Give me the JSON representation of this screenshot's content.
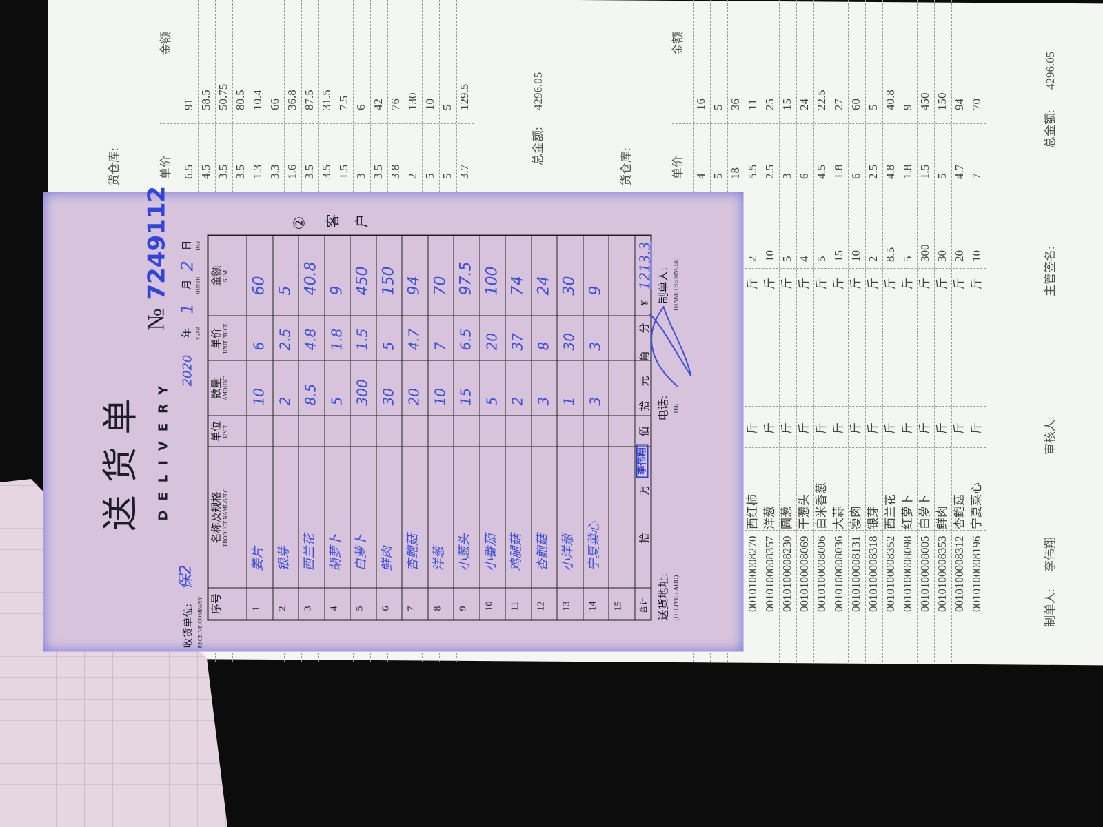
{
  "print_table_1": {
    "header_price": "单价",
    "header_amount": "金额",
    "rows": [
      {
        "price": "6.5",
        "amount": "91"
      },
      {
        "price": "4.5",
        "amount": "58.5"
      },
      {
        "price": "3.5",
        "amount": "50.75"
      },
      {
        "price": "3.5",
        "amount": "80.5"
      },
      {
        "price": "1.3",
        "amount": "10.4"
      },
      {
        "price": "3.3",
        "amount": "66"
      },
      {
        "price": "1.6",
        "amount": "36.8"
      },
      {
        "price": "3.5",
        "amount": "87.5"
      },
      {
        "price": "3.5",
        "amount": "31.5"
      },
      {
        "price": "1.5",
        "amount": "7.5"
      },
      {
        "price": "3",
        "amount": "6"
      },
      {
        "price": "3.5",
        "amount": "42"
      },
      {
        "price": "3.8",
        "amount": "76"
      },
      {
        "price": "2",
        "amount": "130"
      },
      {
        "price": "5",
        "amount": "10"
      },
      {
        "price": "5",
        "amount": "5"
      },
      {
        "price": "3.7",
        "amount": "129.5"
      }
    ],
    "warehouse_label": "货仓库:",
    "total_label": "总金额:",
    "total_value": "4296.05"
  },
  "print_table_2": {
    "header_price": "单价",
    "header_amount": "金额",
    "warehouse_label": "货仓库:",
    "rows": [
      {
        "code": "",
        "name": "",
        "unit": "",
        "unit2": "",
        "qty": "",
        "price": "4",
        "amount": "16"
      },
      {
        "code": "",
        "name": "",
        "unit": "",
        "unit2": "",
        "qty": "",
        "price": "5",
        "amount": "5"
      },
      {
        "code": "",
        "name": "",
        "unit": "",
        "unit2": "",
        "qty": "",
        "price": "18",
        "amount": "36"
      },
      {
        "code": "0010100008270",
        "name": "西红柿",
        "unit": "斤",
        "unit2": "斤",
        "qty": "2",
        "price": "5.5",
        "amount": "11"
      },
      {
        "code": "0010100008357",
        "name": "洋葱",
        "unit": "斤",
        "unit2": "斤",
        "qty": "10",
        "price": "2.5",
        "amount": "25"
      },
      {
        "code": "0010100008230",
        "name": "圆葱",
        "unit": "斤",
        "unit2": "斤",
        "qty": "5",
        "price": "3",
        "amount": "15"
      },
      {
        "code": "0010100008069",
        "name": "干葱头",
        "unit": "斤",
        "unit2": "斤",
        "qty": "4",
        "price": "6",
        "amount": "24"
      },
      {
        "code": "0010100008006",
        "name": "白米香葱",
        "unit": "斤",
        "unit2": "斤",
        "qty": "5",
        "price": "4.5",
        "amount": "22.5"
      },
      {
        "code": "0010100008036",
        "name": "大蒜",
        "unit": "斤",
        "unit2": "斤",
        "qty": "15",
        "price": "1.8",
        "amount": "27"
      },
      {
        "code": "0010100008131",
        "name": "瘦肉",
        "unit": "斤",
        "unit2": "斤",
        "qty": "10",
        "price": "6",
        "amount": "60"
      },
      {
        "code": "0010100008318",
        "name": "银芽",
        "unit": "斤",
        "unit2": "斤",
        "qty": "2",
        "price": "2.5",
        "amount": "5"
      },
      {
        "code": "0010100008352",
        "name": "西兰花",
        "unit": "斤",
        "unit2": "斤",
        "qty": "8.5",
        "price": "4.8",
        "amount": "40.8"
      },
      {
        "code": "0010100008098",
        "name": "红萝卜",
        "unit": "斤",
        "unit2": "斤",
        "qty": "5",
        "price": "1.8",
        "amount": "9"
      },
      {
        "code": "0010100008005",
        "name": "白萝卜",
        "unit": "斤",
        "unit2": "斤",
        "qty": "300",
        "price": "1.5",
        "amount": "450"
      },
      {
        "code": "0010100008353",
        "name": "鲜肉",
        "unit": "斤",
        "unit2": "斤",
        "qty": "30",
        "price": "5",
        "amount": "150"
      },
      {
        "code": "0010100008312",
        "name": "杏鲍菇",
        "unit": "斤",
        "unit2": "斤",
        "qty": "20",
        "price": "4.7",
        "amount": "94"
      },
      {
        "code": "0010100008196",
        "name": "宁夏菜心",
        "unit": "斤",
        "unit2": "斤",
        "qty": "10",
        "price": "7",
        "amount": "70"
      }
    ],
    "maker_label": "制单人:",
    "maker_name": "李伟翔",
    "reviewer_label": "审核人:",
    "supervisor_label": "主管签名:",
    "total_label": "总金额:",
    "total_value": "4296.05"
  },
  "delivery_form": {
    "title_cn": "送货单",
    "title_en": "DELIVERY",
    "number_prefix": "№",
    "number": "7249112",
    "year_value": "2020",
    "year_label": "年",
    "year_en": "YEAR",
    "month_value": "1",
    "month_label": "月",
    "month_en": "MONTH",
    "day_value": "2",
    "day_label": "日",
    "day_en": "DAY",
    "receive_label": "收货单位:",
    "receive_en": "RECEIVE COMPANY",
    "receive_value": "保2",
    "copy_mark": "②",
    "copy_label_1": "客",
    "copy_label_2": "户",
    "headers": {
      "seq": "序号",
      "name": "名称及规格",
      "name_en": "PRODUCT NAME/SPEC",
      "unit": "单位",
      "unit_en": "UNIT",
      "amount": "数量",
      "amount_en": "AMOUNT",
      "price": "单价",
      "price_en": "UNIT PRICE",
      "sum": "金额",
      "sum_en": "SUM"
    },
    "rows": [
      {
        "no": "1",
        "name": "姜片",
        "qty": "10",
        "price": "6",
        "sum": "60"
      },
      {
        "no": "2",
        "name": "银芽",
        "qty": "2",
        "price": "2.5",
        "sum": "5"
      },
      {
        "no": "3",
        "name": "西兰花",
        "qty": "8.5",
        "price": "4.8",
        "sum": "40.8"
      },
      {
        "no": "4",
        "name": "胡萝卜",
        "qty": "5",
        "price": "1.8",
        "sum": "9"
      },
      {
        "no": "5",
        "name": "白萝卜",
        "qty": "300",
        "price": "1.5",
        "sum": "450"
      },
      {
        "no": "6",
        "name": "鲜肉",
        "qty": "30",
        "price": "5",
        "sum": "150"
      },
      {
        "no": "7",
        "name": "杏鲍菇",
        "qty": "20",
        "price": "4.7",
        "sum": "94"
      },
      {
        "no": "8",
        "name": "洋葱",
        "qty": "10",
        "price": "7",
        "sum": "70"
      },
      {
        "no": "9",
        "name": "小葱头",
        "qty": "15",
        "price": "6.5",
        "sum": "97.5"
      },
      {
        "no": "10",
        "name": "小番茄",
        "qty": "5",
        "price": "20",
        "sum": "100"
      },
      {
        "no": "11",
        "name": "鸡腿菇",
        "qty": "2",
        "price": "37",
        "sum": "74"
      },
      {
        "no": "12",
        "name": "杏鲍菇",
        "qty": "3",
        "price": "8",
        "sum": "24"
      },
      {
        "no": "13",
        "name": "小洋葱",
        "qty": "1",
        "price": "30",
        "sum": "30"
      },
      {
        "no": "14",
        "name": "宁夏菜心",
        "qty": "3",
        "price": "3",
        "sum": "9"
      },
      {
        "no": "15",
        "name": "",
        "qty": "",
        "price": "",
        "sum": ""
      }
    ],
    "total_label": "合计",
    "total_units": [
      "拾",
      "万",
      "佰",
      "拾",
      "元",
      "角",
      "分"
    ],
    "currency": "¥",
    "total_value": "1213.3",
    "stamp": "李伟翔",
    "address_label": "送货地址:",
    "address_en": "(DELIVER ADD)",
    "tel_label": "电话:",
    "tel_en": "TEL",
    "maker_label": "制单人:",
    "maker_en": "(MAKE THE SINGLE)"
  }
}
